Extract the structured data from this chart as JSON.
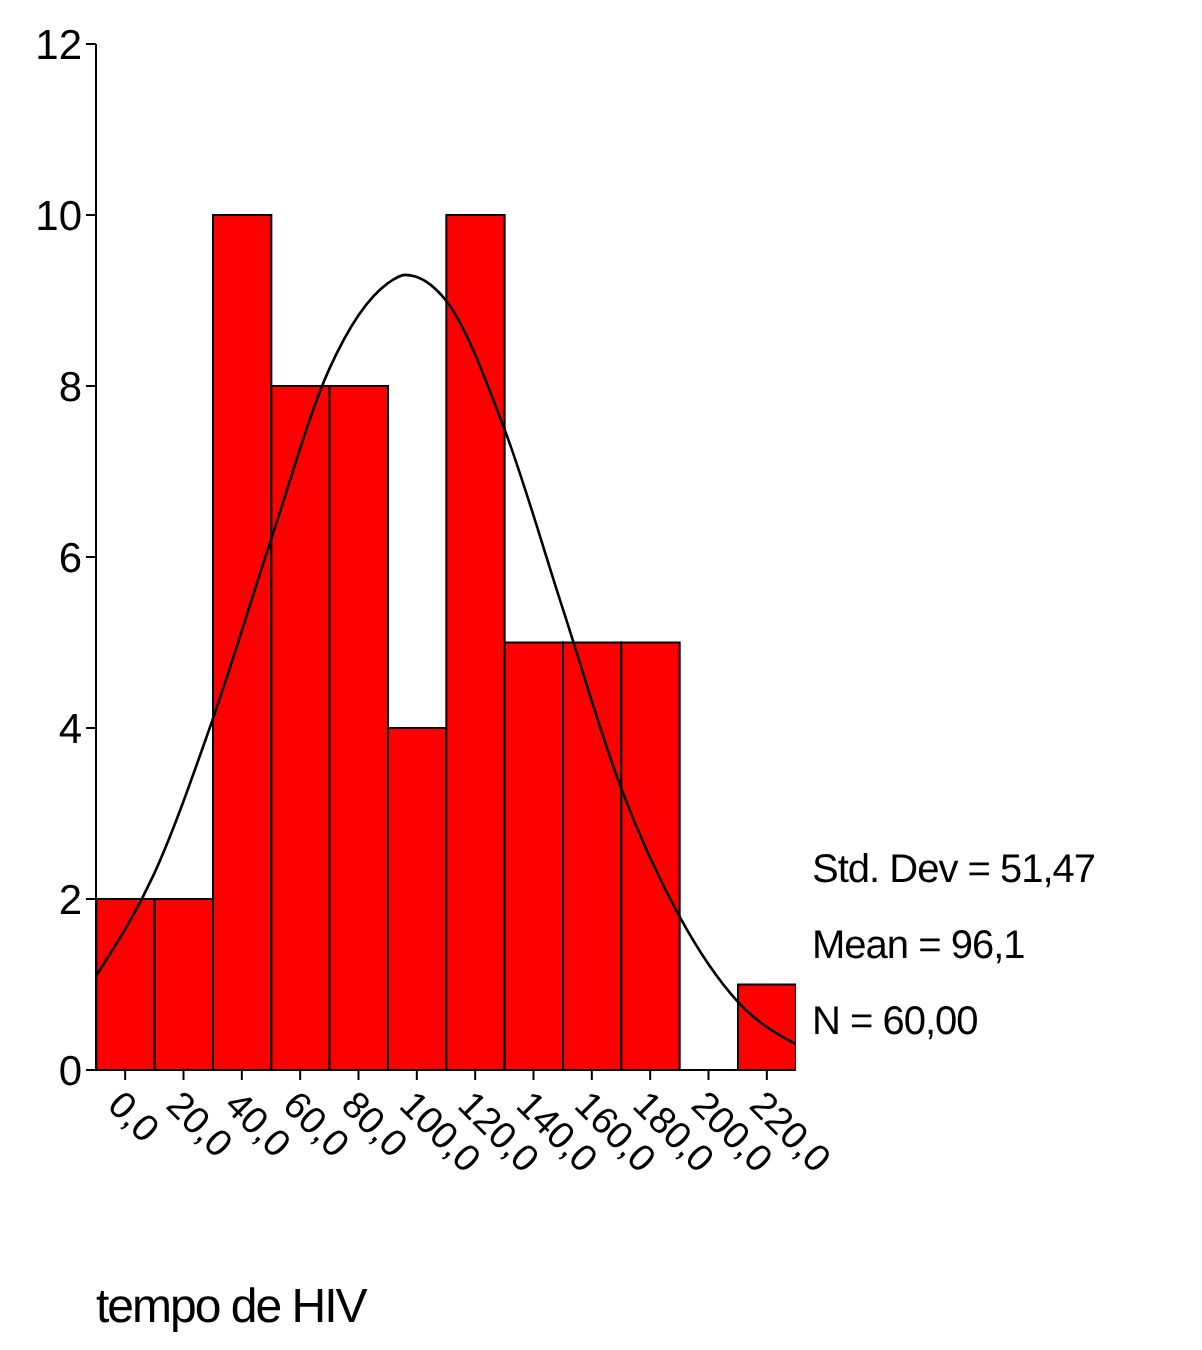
{
  "chart_data": {
    "type": "histogram",
    "xlabel": "tempo de HIV",
    "bins": [
      -10,
      10,
      30,
      50,
      70,
      90,
      110,
      130,
      150,
      170,
      190,
      210,
      230
    ],
    "values": [
      2,
      2,
      10,
      8,
      8,
      4,
      10,
      5,
      5,
      5,
      0,
      1
    ],
    "color": "#ff0000",
    "series": [
      {
        "type": "line",
        "color": "#000000",
        "x": [
          -10,
          10,
          30,
          50,
          70,
          90,
          96,
          110,
          130,
          150,
          170,
          190,
          210,
          230
        ],
        "values": [
          1.1,
          2.3,
          4.1,
          6.2,
          8.2,
          9.2,
          9.3,
          9.0,
          7.5,
          5.4,
          3.3,
          1.8,
          0.8,
          0.3
        ]
      }
    ],
    "xlim": [
      -10,
      230
    ],
    "xticks": [
      {
        "value": 0,
        "label": "0,0"
      },
      {
        "value": 20,
        "label": "20,0"
      },
      {
        "value": 40,
        "label": "40,0"
      },
      {
        "value": 60,
        "label": "60,0"
      },
      {
        "value": 80,
        "label": "80,0"
      },
      {
        "value": 100,
        "label": "100,0"
      },
      {
        "value": 120,
        "label": "120,0"
      },
      {
        "value": 140,
        "label": "140,0"
      },
      {
        "value": 160,
        "label": "160,0"
      },
      {
        "value": 180,
        "label": "180,0"
      },
      {
        "value": 200,
        "label": "200,0"
      },
      {
        "value": 220,
        "label": "220,0"
      }
    ],
    "ylim": [
      0,
      12
    ],
    "yticks": [
      0,
      2,
      4,
      6,
      8,
      10,
      12
    ],
    "annotations": [
      "Std. Dev = 51,47",
      "Mean = 96,1",
      "N = 60,00"
    ],
    "grid": false,
    "legend": false
  }
}
